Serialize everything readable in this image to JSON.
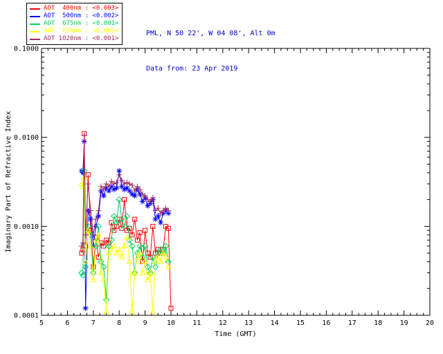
{
  "header": {
    "station_line": "PML, N 50 22', W 04 08', Alt 0m",
    "date_line": "Data from: 23 Apr 2019",
    "text_color": "#0000cc"
  },
  "legend": {
    "entries": [
      {
        "label": "AOT  400nm : <0.003>",
        "color": "#ff0000"
      },
      {
        "label": "AOT  500nm : <0.002>",
        "color": "#0000ff"
      },
      {
        "label": "AOT  675nm : <0.001>",
        "color": "#00d060"
      },
      {
        "label": "AOT  870nm : <0.001>",
        "color": "#ffff00"
      },
      {
        "label": "AOT 1020nm : <0.001>",
        "color": "#a02860"
      }
    ]
  },
  "chart_data": {
    "type": "line",
    "title": "",
    "xlabel": "Time (GMT)",
    "ylabel": "Imaginary Part of Refractive Index",
    "xlim": [
      5,
      20
    ],
    "ylim_log": [
      0.0001,
      0.1
    ],
    "y_scale": "log",
    "grid": false,
    "x_ticks": [
      5,
      6,
      7,
      8,
      9,
      10,
      11,
      12,
      13,
      14,
      15,
      16,
      17,
      18,
      19,
      20
    ],
    "y_ticks": [
      {
        "v": 0.0001,
        "label": "0.0001"
      },
      {
        "v": 0.001,
        "label": "0.0010"
      },
      {
        "v": 0.01,
        "label": "0.0100"
      },
      {
        "v": 0.1,
        "label": "0.1000"
      }
    ],
    "series": [
      {
        "name": "AOT 400nm",
        "color": "#ff0000",
        "marker": "square",
        "points": [
          [
            6.55,
            0.0005
          ],
          [
            6.6,
            0.00055
          ],
          [
            6.65,
            0.011
          ],
          [
            6.7,
            0.0006
          ],
          [
            6.8,
            0.0038
          ],
          [
            6.9,
            0.0009
          ],
          [
            7.0,
            0.00035
          ],
          [
            7.1,
            0.00075
          ],
          [
            7.2,
            0.00045
          ],
          [
            7.3,
            0.00065
          ],
          [
            7.4,
            0.0006
          ],
          [
            7.5,
            0.0007
          ],
          [
            7.6,
            0.00065
          ],
          [
            7.7,
            0.0011
          ],
          [
            7.8,
            0.0009
          ],
          [
            7.9,
            0.001
          ],
          [
            8.0,
            0.0012
          ],
          [
            8.1,
            0.00095
          ],
          [
            8.2,
            0.002
          ],
          [
            8.3,
            0.0009
          ],
          [
            8.4,
            0.00095
          ],
          [
            8.5,
            0.0008
          ],
          [
            8.6,
            0.0012
          ],
          [
            8.7,
            0.0007
          ],
          [
            8.8,
            0.00085
          ],
          [
            8.9,
            0.0004
          ],
          [
            9.0,
            0.0009
          ],
          [
            9.1,
            0.0005
          ],
          [
            9.2,
            0.00045
          ],
          [
            9.3,
            0.001
          ],
          [
            9.4,
            0.0005
          ],
          [
            9.5,
            0.00055
          ],
          [
            9.6,
            0.0005
          ],
          [
            9.7,
            0.00055
          ],
          [
            9.8,
            0.001
          ],
          [
            9.9,
            0.00095
          ],
          [
            10.0,
            0.00012
          ]
        ]
      },
      {
        "name": "AOT 500nm",
        "color": "#0000ff",
        "marker": "asterisk",
        "points": [
          [
            6.55,
            0.0042
          ],
          [
            6.6,
            0.004
          ],
          [
            6.65,
            0.009
          ],
          [
            6.7,
            0.00012
          ],
          [
            6.8,
            0.0015
          ],
          [
            6.9,
            0.0012
          ],
          [
            7.0,
            0.0006
          ],
          [
            7.1,
            0.001
          ],
          [
            7.2,
            0.0013
          ],
          [
            7.3,
            0.0025
          ],
          [
            7.4,
            0.0022
          ],
          [
            7.5,
            0.0027
          ],
          [
            7.6,
            0.0025
          ],
          [
            7.7,
            0.0028
          ],
          [
            7.8,
            0.0026
          ],
          [
            7.9,
            0.0027
          ],
          [
            8.0,
            0.0042
          ],
          [
            8.1,
            0.0028
          ],
          [
            8.2,
            0.0026
          ],
          [
            8.3,
            0.0027
          ],
          [
            8.4,
            0.0025
          ],
          [
            8.5,
            0.0023
          ],
          [
            8.6,
            0.0022
          ],
          [
            8.7,
            0.0026
          ],
          [
            8.8,
            0.0023
          ],
          [
            8.9,
            0.0019
          ],
          [
            9.0,
            0.0021
          ],
          [
            9.1,
            0.0017
          ],
          [
            9.2,
            0.0018
          ],
          [
            9.3,
            0.002
          ],
          [
            9.4,
            0.0012
          ],
          [
            9.5,
            0.0013
          ],
          [
            9.6,
            0.0011
          ],
          [
            9.7,
            0.0014
          ],
          [
            9.8,
            0.0015
          ],
          [
            9.9,
            0.0014
          ]
        ]
      },
      {
        "name": "AOT 675nm",
        "color": "#00d060",
        "marker": "diamond",
        "points": [
          [
            6.55,
            0.0003
          ],
          [
            6.6,
            0.00028
          ],
          [
            6.65,
            0.0042
          ],
          [
            6.7,
            0.00035
          ],
          [
            6.8,
            0.001
          ],
          [
            6.9,
            0.0008
          ],
          [
            7.0,
            0.0003
          ],
          [
            7.1,
            0.0006
          ],
          [
            7.2,
            0.001
          ],
          [
            7.3,
            0.0004
          ],
          [
            7.4,
            0.00035
          ],
          [
            7.5,
            0.00015
          ],
          [
            7.6,
            0.0006
          ],
          [
            7.7,
            0.0007
          ],
          [
            7.8,
            0.0013
          ],
          [
            7.9,
            0.0011
          ],
          [
            8.0,
            0.002
          ],
          [
            8.1,
            0.0012
          ],
          [
            8.2,
            0.001
          ],
          [
            8.3,
            0.0013
          ],
          [
            8.4,
            0.0007
          ],
          [
            8.5,
            0.0006
          ],
          [
            8.6,
            0.0003
          ],
          [
            8.7,
            0.0005
          ],
          [
            8.8,
            0.0006
          ],
          [
            8.9,
            0.00045
          ],
          [
            9.0,
            0.0006
          ],
          [
            9.1,
            0.00035
          ],
          [
            9.2,
            0.0003
          ],
          [
            9.3,
            0.00045
          ],
          [
            9.4,
            0.00035
          ],
          [
            9.5,
            0.0005
          ],
          [
            9.6,
            0.00055
          ],
          [
            9.7,
            0.0005
          ],
          [
            9.8,
            0.0006
          ],
          [
            9.9,
            0.0004
          ]
        ]
      },
      {
        "name": "AOT 870nm",
        "color": "#ffff00",
        "marker": "triangle",
        "points": [
          [
            6.55,
            0.003
          ],
          [
            6.6,
            0.0028
          ],
          [
            6.65,
            0.0035
          ],
          [
            6.7,
            0.0004
          ],
          [
            6.8,
            0.0009
          ],
          [
            6.9,
            0.0006
          ],
          [
            7.0,
            0.00025
          ],
          [
            7.1,
            0.0007
          ],
          [
            7.2,
            0.0008
          ],
          [
            7.3,
            0.0003
          ],
          [
            7.4,
            0.00025
          ],
          [
            7.5,
            0.00011
          ],
          [
            7.6,
            0.0005
          ],
          [
            7.7,
            0.00055
          ],
          [
            7.8,
            0.0006
          ],
          [
            7.9,
            0.0005
          ],
          [
            8.0,
            0.00055
          ],
          [
            8.1,
            0.00045
          ],
          [
            8.2,
            0.0006
          ],
          [
            8.3,
            0.00075
          ],
          [
            8.4,
            0.0004
          ],
          [
            8.5,
            0.00011
          ],
          [
            8.6,
            0.0003
          ],
          [
            8.7,
            0.00045
          ],
          [
            8.8,
            0.0005
          ],
          [
            8.9,
            0.0003
          ],
          [
            9.0,
            0.0004
          ],
          [
            9.1,
            0.00025
          ],
          [
            9.2,
            0.0003
          ],
          [
            9.3,
            0.00011
          ],
          [
            9.4,
            0.0004
          ],
          [
            9.5,
            0.00045
          ],
          [
            9.6,
            0.0004
          ],
          [
            9.7,
            0.0005
          ],
          [
            9.8,
            0.00045
          ],
          [
            9.9,
            0.00035
          ]
        ]
      },
      {
        "name": "AOT 1020nm",
        "color": "#a02860",
        "marker": "plus",
        "points": [
          [
            6.55,
            0.0006
          ],
          [
            6.6,
            0.00065
          ],
          [
            6.65,
            0.0105
          ],
          [
            6.7,
            0.0008
          ],
          [
            6.8,
            0.003
          ],
          [
            6.9,
            0.0015
          ],
          [
            7.0,
            0.0008
          ],
          [
            7.1,
            0.0012
          ],
          [
            7.2,
            0.0015
          ],
          [
            7.3,
            0.0028
          ],
          [
            7.4,
            0.0026
          ],
          [
            7.5,
            0.003
          ],
          [
            7.6,
            0.0028
          ],
          [
            7.7,
            0.0032
          ],
          [
            7.8,
            0.003
          ],
          [
            7.9,
            0.0031
          ],
          [
            8.0,
            0.0038
          ],
          [
            8.1,
            0.0033
          ],
          [
            8.2,
            0.003
          ],
          [
            8.3,
            0.0031
          ],
          [
            8.4,
            0.003
          ],
          [
            8.5,
            0.0029
          ],
          [
            8.6,
            0.0025
          ],
          [
            8.7,
            0.0028
          ],
          [
            8.8,
            0.0026
          ],
          [
            8.9,
            0.0023
          ],
          [
            9.0,
            0.0022
          ],
          [
            9.1,
            0.002
          ],
          [
            9.2,
            0.0019
          ],
          [
            9.3,
            0.0021
          ],
          [
            9.4,
            0.0015
          ],
          [
            9.5,
            0.0016
          ],
          [
            9.6,
            0.0014
          ],
          [
            9.7,
            0.0015
          ],
          [
            9.8,
            0.0016
          ],
          [
            9.9,
            0.0015
          ]
        ]
      }
    ]
  }
}
